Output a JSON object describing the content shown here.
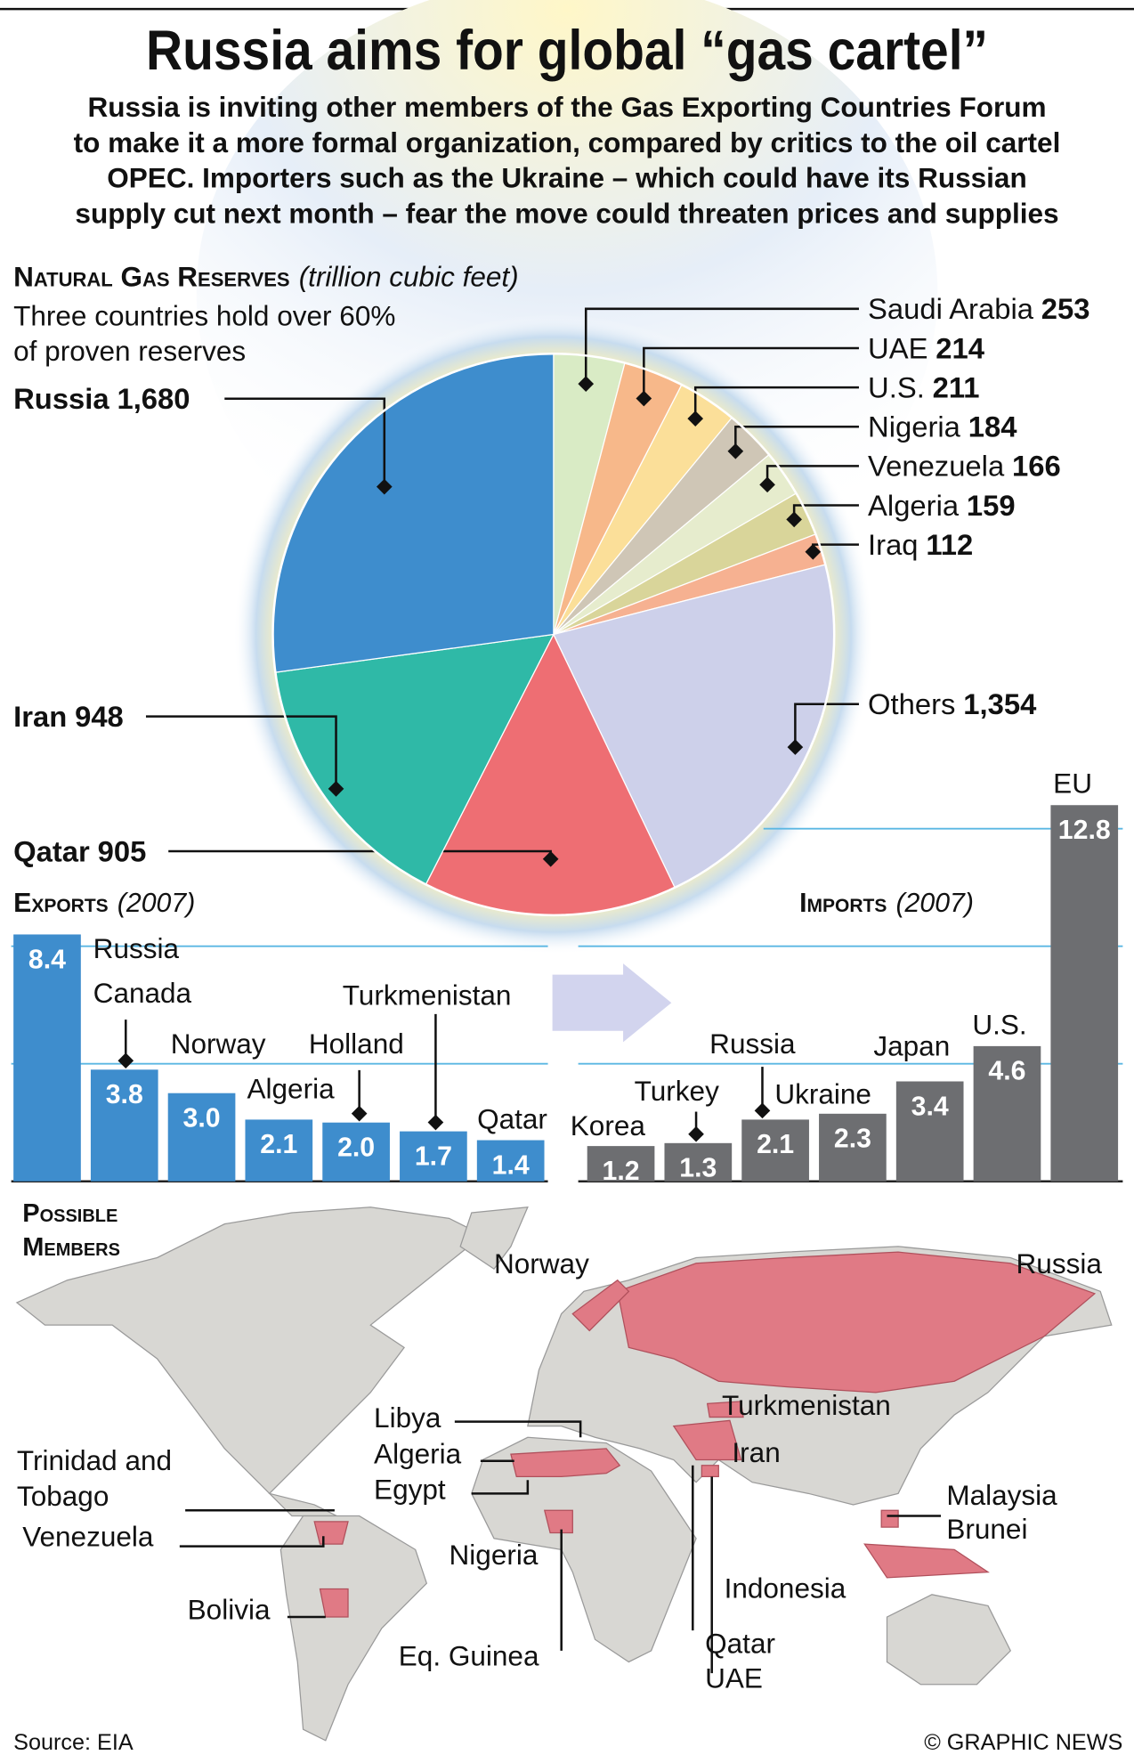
{
  "title": "Russia aims for global “gas cartel”",
  "subtitle": [
    "Russia is inviting other members of the Gas Exporting Countries Forum",
    "to make it a more formal organization, compared by critics to the oil cartel",
    "OPEC. Importers such as the Ukraine – which could have its Russian",
    "supply cut next month – fear the move could threaten prices and supplies"
  ],
  "chart_data": [
    {
      "type": "pie",
      "title": "Natural Gas Reserves",
      "subtitle": "(trillion cubic feet)",
      "note": [
        "Three countries hold over 60%",
        "of proven reserves"
      ],
      "categories": [
        "Saudi Arabia",
        "UAE",
        "U.S.",
        "Nigeria",
        "Venezuela",
        "Algeria",
        "Iraq",
        "Others",
        "Qatar",
        "Iran",
        "Russia"
      ],
      "values": [
        253,
        214,
        211,
        184,
        166,
        159,
        112,
        1354,
        905,
        948,
        1680
      ],
      "value_labels": [
        "253",
        "214",
        "211",
        "184",
        "166",
        "159",
        "112",
        "1,354",
        "905",
        "948",
        "1,680"
      ],
      "colors": [
        "#d9ebc5",
        "#f7b88a",
        "#fbdf99",
        "#cfc6b6",
        "#e6eccd",
        "#d9d59a",
        "#f6b191",
        "#cdd0ea",
        "#ee6e73",
        "#2fb9a7",
        "#3e8dcd"
      ]
    },
    {
      "type": "bar",
      "title": "Exports",
      "subtitle": "(2007)",
      "color": "#3e8dcd",
      "categories": [
        "Russia",
        "Canada",
        "Norway",
        "Algeria",
        "Holland",
        "Turkmenistan",
        "Qatar"
      ],
      "values": [
        8.4,
        3.8,
        3.0,
        2.1,
        2.0,
        1.7,
        1.4
      ],
      "value_labels": [
        "8.4",
        "3.8",
        "3.0",
        "2.1",
        "2.0",
        "1.7",
        "1.4"
      ],
      "ylim": [
        0,
        12.8
      ],
      "yticks": [
        4,
        8
      ],
      "grid": true
    },
    {
      "type": "bar",
      "title": "Imports",
      "subtitle": "(2007)",
      "color": "#6d6e71",
      "categories": [
        "Korea",
        "Turkey",
        "Russia",
        "Ukraine",
        "Japan",
        "U.S.",
        "EU"
      ],
      "values": [
        1.2,
        1.3,
        2.1,
        2.3,
        3.4,
        4.6,
        12.8
      ],
      "value_labels": [
        "1.2",
        "1.3",
        "2.1",
        "2.3",
        "3.4",
        "4.6",
        "12.8"
      ],
      "ylim": [
        0,
        12.8
      ],
      "yticks": [
        4,
        8,
        12
      ],
      "grid": true
    }
  ],
  "map": {
    "title": [
      "Possible",
      "Members"
    ],
    "members": [
      "Norway",
      "Russia",
      "Turkmenistan",
      "Libya",
      "Algeria",
      "Egypt",
      "Iran",
      "Trinidad and Tobago",
      "Venezuela",
      "Malaysia",
      "Brunei",
      "Nigeria",
      "Indonesia",
      "Bolivia",
      "Eq. Guinea",
      "Qatar",
      "UAE"
    ]
  },
  "source": "Source: EIA",
  "credit": "© GRAPHIC NEWS"
}
